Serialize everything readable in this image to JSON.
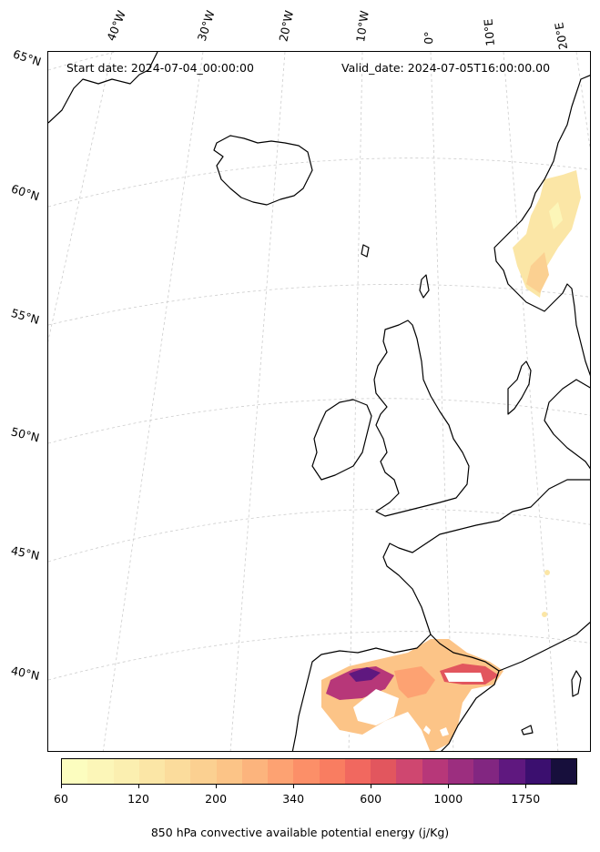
{
  "header": {
    "start_date": "Start date: 2024-07-04_00:00:00",
    "valid_date": "Valid_date: 2024-07-05T16:00:00.00"
  },
  "longitude_labels": [
    "40°W",
    "30°W",
    "20°W",
    "10°W",
    "0°",
    "10°E",
    "20°E"
  ],
  "latitude_labels": [
    "65°N",
    "60°N",
    "55°N",
    "50°N",
    "45°N",
    "40°N"
  ],
  "colorbar": {
    "title": "850 hPa convective available potential energy (j/Kg)",
    "tick_labels": [
      "60",
      "120",
      "200",
      "340",
      "600",
      "1000",
      "1750"
    ],
    "colors": [
      "#fcfdbf",
      "#fcf6b8",
      "#fbefb0",
      "#fbe6a6",
      "#fbdc9c",
      "#fbd091",
      "#fcc487",
      "#fcb47d",
      "#fda272",
      "#fc8f68",
      "#f97d61",
      "#f1685f",
      "#e2565e",
      "#cf4770",
      "#b73779",
      "#9c2e7f",
      "#822681",
      "#5f187f",
      "#3b0f6f",
      "#170f3c"
    ]
  },
  "map": {
    "projection": "polar stereographic",
    "land_fill": "none",
    "coastline_color": "#000000",
    "gridline_color": "#cccccc",
    "grid": true,
    "field": "850 hPa CAPE",
    "field_regions": [
      "southern Norway",
      "northern and eastern Spain",
      "central Mediterranean coast"
    ]
  }
}
